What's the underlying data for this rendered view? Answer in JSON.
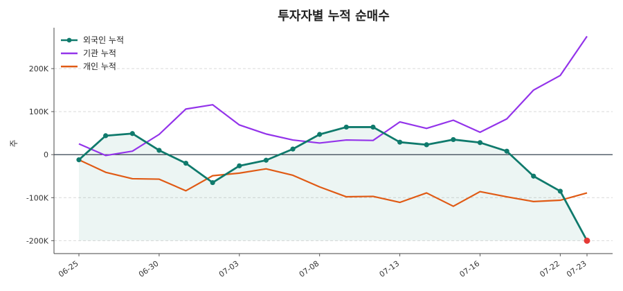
{
  "chart_data": {
    "type": "line",
    "title": "투자자별 누적 순매수",
    "ylabel": "주",
    "ylim": [
      -230000,
      295000
    ],
    "yticks": [
      -200000,
      -100000,
      0,
      100000,
      200000
    ],
    "ytick_labels": [
      "-200K",
      "-100K",
      "0",
      "100K",
      "200K"
    ],
    "x": [
      "06-25",
      "06-26",
      "06-27",
      "06-30",
      "07-01",
      "07-02",
      "07-03",
      "07-04",
      "07-07",
      "07-08",
      "07-09",
      "07-10",
      "07-13",
      "07-14",
      "07-15",
      "07-16",
      "07-17",
      "07-20",
      "07-22",
      "07-23"
    ],
    "xtick_labels": [
      "06-25",
      "06-30",
      "07-03",
      "07-08",
      "07-13",
      "07-16",
      "07-22",
      "07-23"
    ],
    "legend_position": "top-left",
    "grid": "horizontal-dashed",
    "series": [
      {
        "name": "외국인 누적",
        "color": "#0f7a6c",
        "markers": true,
        "fill": true,
        "values": [
          -12000,
          44000,
          49000,
          10000,
          -20000,
          -65000,
          -26000,
          -13000,
          13000,
          47000,
          64000,
          64000,
          29000,
          23000,
          35000,
          28000,
          8000,
          -50000,
          -85000,
          -200000
        ]
      },
      {
        "name": "기관 누적",
        "color": "#9333ea",
        "markers": false,
        "fill": false,
        "values": [
          25000,
          -2000,
          8000,
          47000,
          106000,
          116000,
          69000,
          48000,
          34000,
          27000,
          34000,
          33000,
          76000,
          61000,
          80000,
          52000,
          83000,
          150000,
          184000,
          275000
        ]
      },
      {
        "name": "개인 누적",
        "color": "#e05a14",
        "markers": false,
        "fill": false,
        "values": [
          -12000,
          -41000,
          -56000,
          -57000,
          -84000,
          -49000,
          -43000,
          -33000,
          -48000,
          -75000,
          -98000,
          -97000,
          -111000,
          -89000,
          -120000,
          -86000,
          -98000,
          -109000,
          -106000,
          -89000
        ]
      }
    ]
  }
}
